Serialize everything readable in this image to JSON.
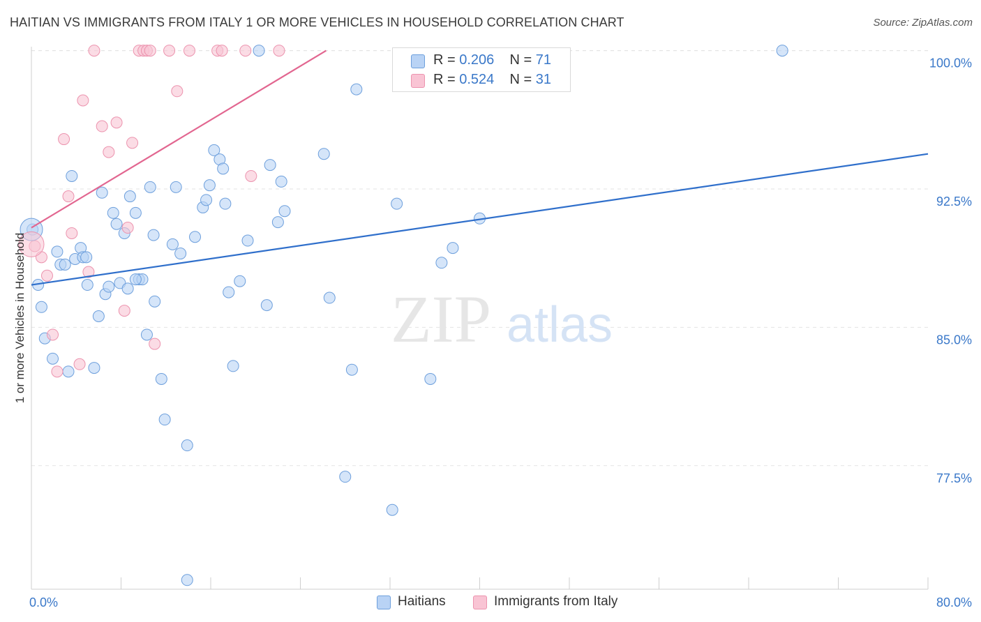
{
  "title": "HAITIAN VS IMMIGRANTS FROM ITALY 1 OR MORE VEHICLES IN HOUSEHOLD CORRELATION CHART",
  "source": "Source: ZipAtlas.com",
  "watermark": {
    "zip": "ZIP",
    "atlas": "atlas"
  },
  "legend": {
    "rows": [
      {
        "r_label": "R = ",
        "r_value": "0.206",
        "n_label": "N = ",
        "n_value": "71"
      },
      {
        "r_label": "R = ",
        "r_value": "0.524",
        "n_label": "N = ",
        "n_value": "31"
      }
    ]
  },
  "bottom_legend": [
    "Haitians",
    "Immigrants from Italy"
  ],
  "colors": {
    "haitian_fill": "#b9d3f5",
    "haitian_stroke": "#6d9fdc",
    "haitian_line": "#2f6fcb",
    "italy_fill": "#f9c4d4",
    "italy_stroke": "#ec93ae",
    "italy_line": "#e26690",
    "axis_text": "#3a78c9",
    "grid": "#e3e3e3"
  },
  "chart_data": {
    "type": "scatter",
    "title": "HAITIAN VS IMMIGRANTS FROM ITALY 1 OR MORE VEHICLES IN HOUSEHOLD CORRELATION CHART",
    "xlabel": "",
    "ylabel": "1 or more Vehicles in Household",
    "xlim": [
      0,
      80
    ],
    "ylim": [
      70.8,
      100.4
    ],
    "x_tick_labels": [
      {
        "value": 0,
        "label": "0.0%"
      },
      {
        "value": 80,
        "label": "80.0%"
      }
    ],
    "y_tick_labels": [
      {
        "value": 100,
        "label": "100.0%"
      },
      {
        "value": 92.5,
        "label": "92.5%"
      },
      {
        "value": 85,
        "label": "85.0%"
      },
      {
        "value": 77.5,
        "label": "77.5%"
      }
    ],
    "x_minor_ticks": [
      0,
      8,
      16,
      24,
      32,
      40,
      48,
      56,
      64,
      72,
      80
    ],
    "series": [
      {
        "name": "Haitians",
        "r": 0.206,
        "n": 71,
        "trend": {
          "x": [
            0,
            80
          ],
          "y": [
            87.3,
            94.4
          ]
        },
        "points": [
          [
            0.1,
            90.3
          ],
          [
            0.6,
            87.3
          ],
          [
            0.9,
            86.1
          ],
          [
            1.2,
            84.4
          ],
          [
            1.9,
            83.3
          ],
          [
            2.3,
            89.1
          ],
          [
            2.6,
            88.4
          ],
          [
            3.0,
            88.4
          ],
          [
            3.3,
            82.6
          ],
          [
            3.6,
            93.2
          ],
          [
            3.9,
            88.7
          ],
          [
            4.4,
            89.3
          ],
          [
            4.6,
            88.8
          ],
          [
            4.9,
            88.8
          ],
          [
            5.0,
            87.3
          ],
          [
            5.6,
            82.8
          ],
          [
            6.0,
            85.6
          ],
          [
            6.3,
            92.3
          ],
          [
            6.6,
            86.8
          ],
          [
            6.9,
            87.2
          ],
          [
            7.3,
            91.2
          ],
          [
            7.6,
            90.6
          ],
          [
            7.9,
            87.4
          ],
          [
            8.3,
            90.1
          ],
          [
            8.6,
            87.1
          ],
          [
            8.8,
            92.1
          ],
          [
            9.3,
            91.2
          ],
          [
            9.6,
            87.6
          ],
          [
            9.9,
            87.6
          ],
          [
            10.3,
            84.6
          ],
          [
            10.6,
            92.6
          ],
          [
            10.9,
            90.0
          ],
          [
            11.0,
            86.4
          ],
          [
            11.6,
            82.2
          ],
          [
            11.9,
            80.0
          ],
          [
            12.6,
            89.5
          ],
          [
            12.9,
            92.6
          ],
          [
            13.3,
            89.0
          ],
          [
            13.9,
            78.6
          ],
          [
            14.6,
            89.9
          ],
          [
            15.3,
            91.5
          ],
          [
            15.6,
            91.9
          ],
          [
            15.9,
            92.7
          ],
          [
            16.3,
            94.6
          ],
          [
            16.8,
            94.1
          ],
          [
            17.1,
            93.6
          ],
          [
            17.3,
            91.7
          ],
          [
            17.6,
            86.9
          ],
          [
            18.0,
            82.9
          ],
          [
            18.6,
            87.5
          ],
          [
            19.3,
            89.7
          ],
          [
            20.3,
            100.0
          ],
          [
            21.0,
            86.2
          ],
          [
            21.3,
            93.8
          ],
          [
            22.0,
            90.7
          ],
          [
            22.3,
            92.9
          ],
          [
            22.6,
            91.3
          ],
          [
            26.1,
            94.4
          ],
          [
            26.6,
            86.6
          ],
          [
            28.0,
            76.9
          ],
          [
            28.6,
            82.7
          ],
          [
            29.0,
            97.9
          ],
          [
            32.2,
            75.1
          ],
          [
            32.6,
            91.7
          ],
          [
            35.6,
            82.2
          ],
          [
            36.6,
            88.5
          ],
          [
            37.6,
            89.3
          ],
          [
            40.0,
            90.9
          ],
          [
            67.0,
            100.0
          ],
          [
            13.9,
            71.3
          ],
          [
            9.3,
            87.6
          ]
        ]
      },
      {
        "name": "Immigrants from Italy",
        "r": 0.524,
        "n": 31,
        "trend": {
          "x": [
            0,
            26.3
          ],
          "y": [
            90.4,
            100.0
          ]
        },
        "points": [
          [
            0.3,
            89.4
          ],
          [
            0.9,
            88.8
          ],
          [
            1.4,
            87.8
          ],
          [
            1.9,
            84.6
          ],
          [
            2.3,
            82.6
          ],
          [
            2.9,
            95.2
          ],
          [
            3.3,
            92.1
          ],
          [
            3.6,
            90.1
          ],
          [
            4.3,
            83.0
          ],
          [
            4.6,
            97.3
          ],
          [
            5.1,
            88.0
          ],
          [
            5.6,
            100.0
          ],
          [
            6.3,
            95.9
          ],
          [
            6.9,
            94.5
          ],
          [
            7.6,
            96.1
          ],
          [
            8.3,
            85.9
          ],
          [
            8.6,
            90.4
          ],
          [
            9.0,
            95.0
          ],
          [
            9.6,
            100.0
          ],
          [
            10.0,
            100.0
          ],
          [
            10.3,
            100.0
          ],
          [
            10.6,
            100.0
          ],
          [
            11.0,
            84.1
          ],
          [
            12.3,
            100.0
          ],
          [
            13.0,
            97.8
          ],
          [
            14.1,
            100.0
          ],
          [
            16.6,
            100.0
          ],
          [
            17.0,
            100.0
          ],
          [
            19.1,
            100.0
          ],
          [
            19.6,
            93.2
          ],
          [
            22.1,
            100.0
          ]
        ]
      }
    ]
  }
}
